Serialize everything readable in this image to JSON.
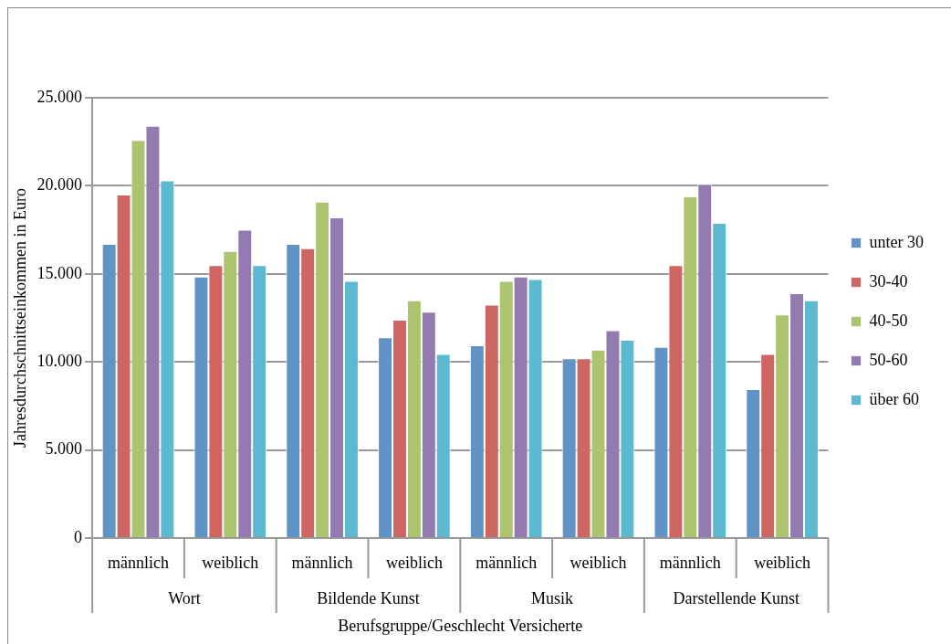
{
  "chart_data": {
    "type": "bar",
    "xlabel": "Berufsgruppe/Geschlecht Versicherte",
    "ylabel": "Jahresdurchschnittseinkommen in Euro",
    "categories": [
      "männlich",
      "weiblich",
      "männlich",
      "weiblich",
      "männlich",
      "weiblich",
      "männlich",
      "weiblich"
    ],
    "annotations": [
      "Wort",
      "Bildende Kunst",
      "Musik",
      "Darstellende Kunst"
    ],
    "series": [
      {
        "name": "unter 30",
        "color": "#6094c7",
        "values": [
          16700,
          14850,
          16700,
          11400,
          10950,
          10200,
          10850,
          8450
        ]
      },
      {
        "name": "30-40",
        "color": "#cd6660",
        "values": [
          19500,
          15500,
          16450,
          12400,
          13250,
          10200,
          15500,
          10450
        ]
      },
      {
        "name": "40-50",
        "color": "#abc46d",
        "values": [
          22600,
          16300,
          19100,
          13500,
          14600,
          10700,
          19400,
          12700
        ]
      },
      {
        "name": "50-60",
        "color": "#937bb2",
        "values": [
          23400,
          17500,
          18200,
          12850,
          14850,
          11800,
          20100,
          13900
        ]
      },
      {
        "name": "über 60",
        "color": "#5bb9d0",
        "values": [
          20300,
          15500,
          14600,
          10450,
          14700,
          11250,
          17900,
          13500
        ]
      }
    ],
    "ylim": [
      0,
      25000
    ],
    "yticks": [
      {
        "value": 0,
        "label": "0"
      },
      {
        "value": 5000,
        "label": "5.000"
      },
      {
        "value": 10000,
        "label": "10.000"
      },
      {
        "value": 15000,
        "label": "15.000"
      },
      {
        "value": 20000,
        "label": "20.000"
      },
      {
        "value": 25000,
        "label": "25.000"
      }
    ],
    "grid": "y",
    "legend": "right"
  }
}
